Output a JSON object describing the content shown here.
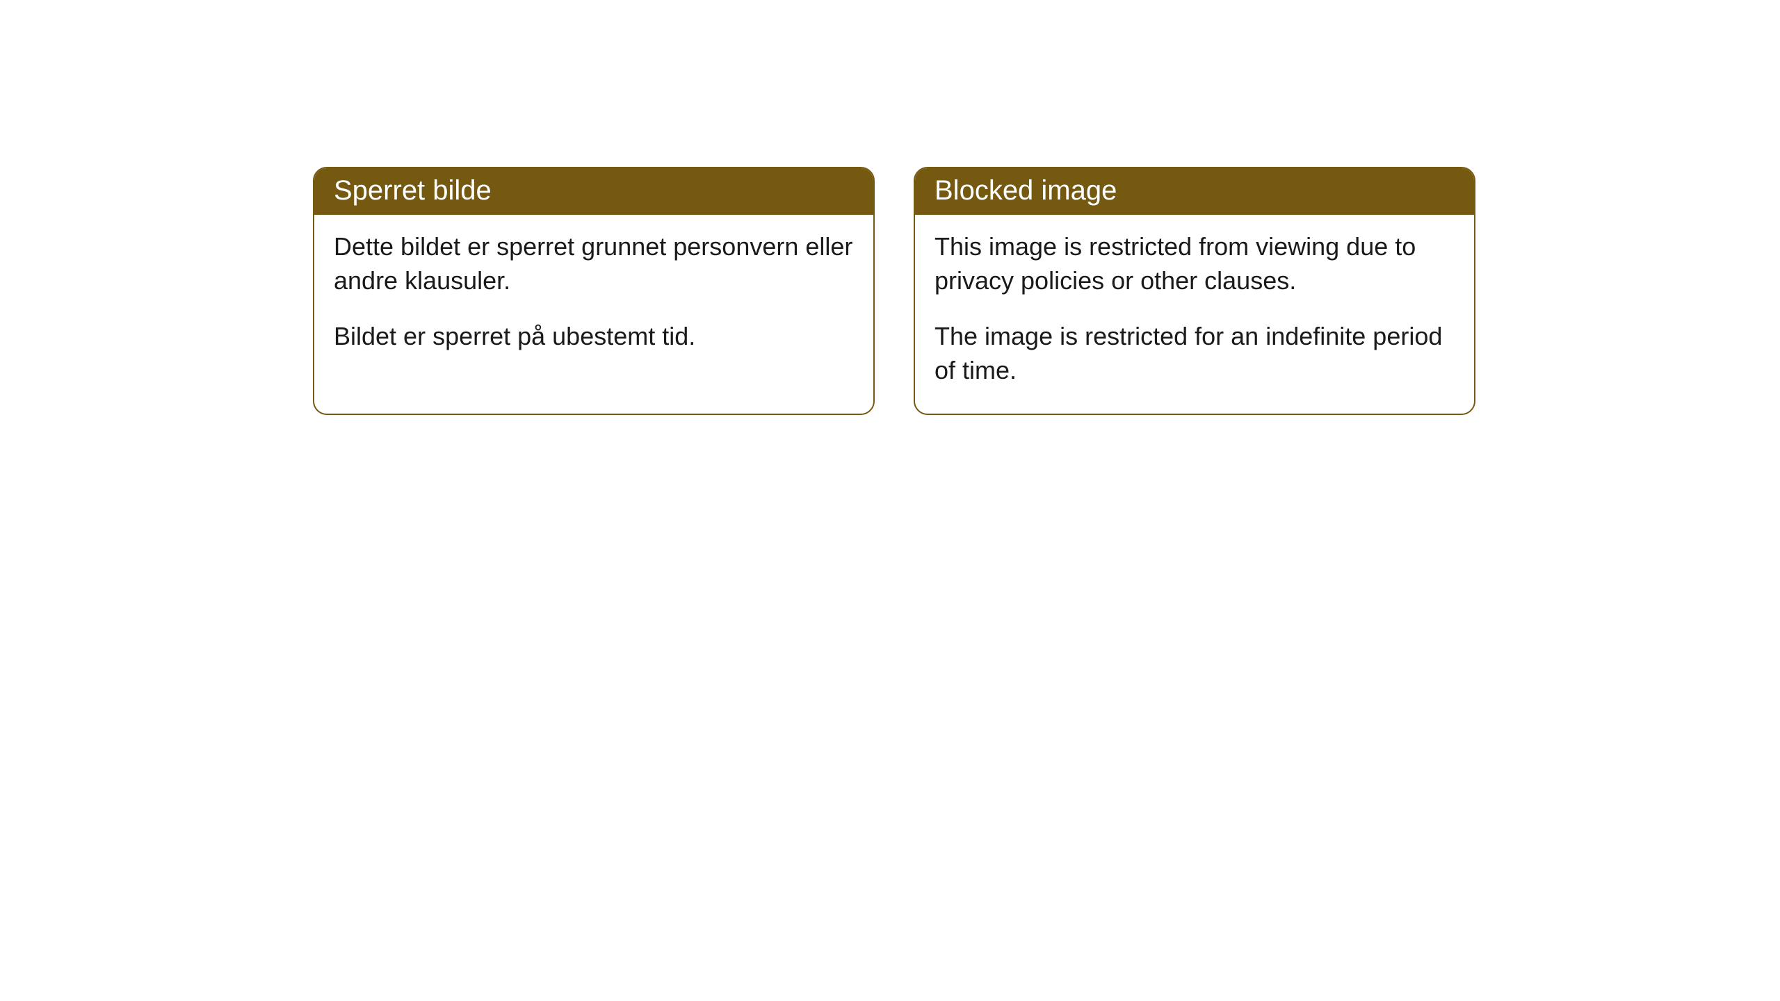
{
  "cards": [
    {
      "title": "Sperret bilde",
      "paragraph1": "Dette bildet er sperret grunnet personvern eller andre klausuler.",
      "paragraph2": "Bildet er sperret på ubestemt tid."
    },
    {
      "title": "Blocked image",
      "paragraph1": "This image is restricted from viewing due to privacy policies or other clauses.",
      "paragraph2": "The image is restricted for an indefinite period of time."
    }
  ],
  "styling": {
    "header_bg_color": "#755910",
    "header_text_color": "#ffffff",
    "border_color": "#755910",
    "body_bg_color": "#ffffff",
    "body_text_color": "#1a1a1a",
    "border_radius": 20,
    "header_fontsize": 40,
    "body_fontsize": 36
  }
}
